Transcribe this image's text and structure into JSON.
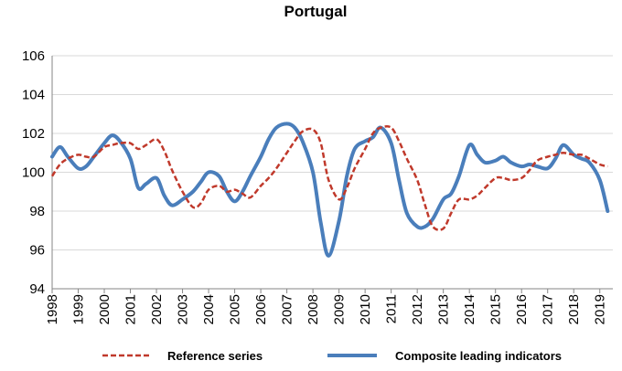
{
  "chart_data": {
    "type": "line",
    "title": "Portugal",
    "xlabel": "",
    "ylabel": "",
    "ylim": [
      94,
      106
    ],
    "yticks": [
      94,
      96,
      98,
      100,
      102,
      104,
      106
    ],
    "xlim": [
      1998,
      2019.5
    ],
    "xticks": [
      "1998",
      "1999",
      "2000",
      "2001",
      "2002",
      "2003",
      "2004",
      "2005",
      "2006",
      "2007",
      "2008",
      "2009",
      "2010",
      "2011",
      "2012",
      "2013",
      "2014",
      "2015",
      "2016",
      "2017",
      "2018",
      "2019"
    ],
    "grid": "horizontal",
    "legend": "bottom",
    "series": [
      {
        "name": "Reference series",
        "color": "#c0392b",
        "style": "dashed",
        "x": [
          1998.0,
          1998.3,
          1998.6,
          1999.0,
          1999.3,
          1999.6,
          2000.0,
          2000.3,
          2000.6,
          2001.0,
          2001.3,
          2001.6,
          2002.0,
          2002.3,
          2002.6,
          2003.0,
          2003.4,
          2003.7,
          2004.0,
          2004.4,
          2004.7,
          2005.0,
          2005.3,
          2005.6,
          2006.0,
          2006.3,
          2006.6,
          2007.0,
          2007.3,
          2007.6,
          2008.0,
          2008.3,
          2008.6,
          2009.0,
          2009.3,
          2009.6,
          2010.0,
          2010.3,
          2010.6,
          2011.0,
          2011.3,
          2011.6,
          2012.0,
          2012.3,
          2012.6,
          2013.0,
          2013.3,
          2013.6,
          2014.0,
          2014.3,
          2014.6,
          2015.0,
          2015.3,
          2015.6,
          2016.0,
          2016.3,
          2016.6,
          2017.0,
          2017.3,
          2017.6,
          2018.0,
          2018.3,
          2018.6,
          2019.0,
          2019.3
        ],
        "values": [
          99.8,
          100.4,
          100.7,
          100.9,
          100.8,
          100.8,
          101.3,
          101.4,
          101.5,
          101.5,
          101.2,
          101.4,
          101.7,
          101.1,
          100.1,
          99.0,
          98.2,
          98.4,
          99.1,
          99.3,
          99.0,
          99.1,
          98.9,
          98.7,
          99.3,
          99.7,
          100.2,
          101.0,
          101.6,
          102.1,
          102.2,
          101.5,
          99.6,
          98.6,
          99.2,
          100.2,
          101.2,
          102.0,
          102.3,
          102.3,
          101.6,
          100.7,
          99.6,
          98.3,
          97.2,
          97.1,
          97.9,
          98.6,
          98.6,
          98.8,
          99.2,
          99.7,
          99.7,
          99.6,
          99.7,
          100.1,
          100.6,
          100.8,
          100.9,
          101.0,
          100.9,
          100.9,
          100.7,
          100.4,
          100.3
        ]
      },
      {
        "name": "Composite leading indicators",
        "color": "#4a7ebb",
        "style": "solid",
        "x": [
          1998.0,
          1998.3,
          1998.6,
          1999.0,
          1999.3,
          1999.6,
          2000.0,
          2000.3,
          2000.6,
          2001.0,
          2001.3,
          2001.6,
          2002.0,
          2002.3,
          2002.6,
          2003.0,
          2003.4,
          2003.7,
          2004.0,
          2004.4,
          2004.7,
          2005.0,
          2005.3,
          2005.6,
          2006.0,
          2006.3,
          2006.6,
          2007.0,
          2007.3,
          2007.6,
          2008.0,
          2008.3,
          2008.6,
          2009.0,
          2009.3,
          2009.6,
          2010.0,
          2010.3,
          2010.6,
          2011.0,
          2011.3,
          2011.6,
          2012.0,
          2012.3,
          2012.6,
          2013.0,
          2013.3,
          2013.6,
          2014.0,
          2014.3,
          2014.6,
          2015.0,
          2015.3,
          2015.6,
          2016.0,
          2016.3,
          2016.6,
          2017.0,
          2017.3,
          2017.6,
          2018.0,
          2018.3,
          2018.6,
          2019.0,
          2019.3
        ],
        "values": [
          100.8,
          101.3,
          100.8,
          100.2,
          100.3,
          100.8,
          101.5,
          101.9,
          101.6,
          100.7,
          99.2,
          99.4,
          99.7,
          98.8,
          98.3,
          98.6,
          99.0,
          99.5,
          100.0,
          99.8,
          99.0,
          98.5,
          99.0,
          99.8,
          100.8,
          101.7,
          102.3,
          102.5,
          102.3,
          101.6,
          100.0,
          97.4,
          95.7,
          97.5,
          99.8,
          101.2,
          101.6,
          101.8,
          102.3,
          101.5,
          99.6,
          97.9,
          97.2,
          97.2,
          97.6,
          98.6,
          98.9,
          99.8,
          101.4,
          100.9,
          100.5,
          100.6,
          100.8,
          100.5,
          100.3,
          100.4,
          100.3,
          100.2,
          100.7,
          101.4,
          100.9,
          100.7,
          100.5,
          99.6,
          98.0
        ]
      }
    ]
  }
}
